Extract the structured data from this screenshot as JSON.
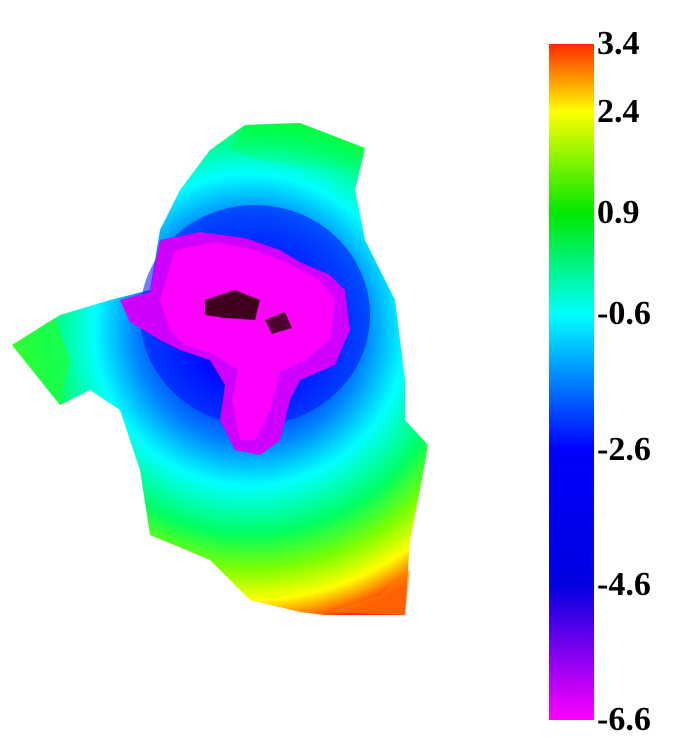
{
  "chart_data": {
    "type": "heatmap",
    "title": "",
    "xlabel": "",
    "ylabel": "",
    "colorbar": {
      "min": -6.6,
      "max": 3.4,
      "ticks": [
        {
          "value": 3.4,
          "label": "3.4"
        },
        {
          "value": 2.4,
          "label": "2.4"
        },
        {
          "value": 0.9,
          "label": "0.9"
        },
        {
          "value": -0.6,
          "label": "-0.6"
        },
        {
          "value": -2.6,
          "label": "-2.6"
        },
        {
          "value": -4.6,
          "label": "-4.6"
        },
        {
          "value": -6.6,
          "label": "-6.6"
        }
      ],
      "colors": [
        {
          "value": 3.4,
          "color": "#ff2a00"
        },
        {
          "value": 2.4,
          "color": "#ffff00"
        },
        {
          "value": 0.9,
          "color": "#00e800"
        },
        {
          "value": -0.6,
          "color": "#00ffff"
        },
        {
          "value": -2.6,
          "color": "#0000ff"
        },
        {
          "value": -4.6,
          "color": "#0000e0"
        },
        {
          "value": -6.6,
          "color": "#ff00ff"
        }
      ]
    }
  }
}
